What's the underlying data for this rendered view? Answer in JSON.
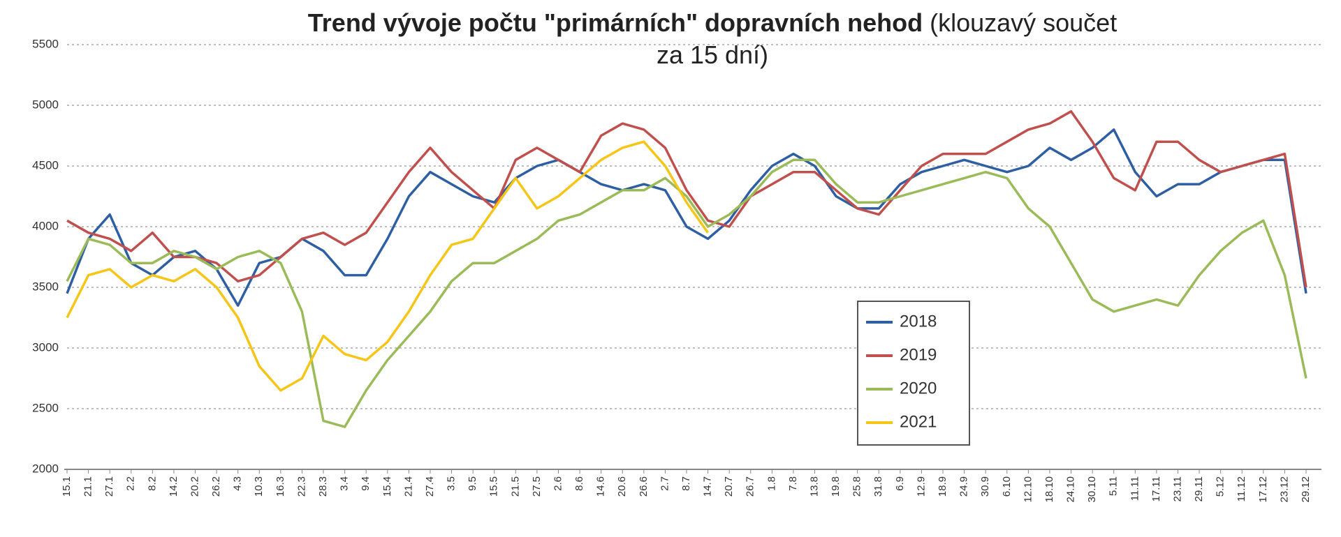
{
  "chart_data": {
    "type": "line",
    "title": "Trend vývoje počtu \"primárních\" dopravních nehod",
    "title_note": "(klouzavý součet za 15 dní)",
    "categories": [
      "15.1",
      "21.1",
      "27.1",
      "2.2",
      "8.2",
      "14.2",
      "20.2",
      "26.2",
      "4.3",
      "10.3",
      "16.3",
      "22.3",
      "28.3",
      "3.4",
      "9.4",
      "15.4",
      "21.4",
      "27.4",
      "3.5",
      "9.5",
      "15.5",
      "21.5",
      "27.5",
      "2.6",
      "8.6",
      "14.6",
      "20.6",
      "26.6",
      "2.7",
      "8.7",
      "14.7",
      "20.7",
      "26.7",
      "1.8",
      "7.8",
      "13.8",
      "19.8",
      "25.8",
      "31.8",
      "6.9",
      "12.9",
      "18.9",
      "24.9",
      "30.9",
      "6.10",
      "12.10",
      "18.10",
      "24.10",
      "30.10",
      "5.11",
      "11.11",
      "17.11",
      "23.11",
      "29.11",
      "5.12",
      "11.12",
      "17.12",
      "23.12",
      "29.12"
    ],
    "series": [
      {
        "name": "2018",
        "color": "#2e5fa3",
        "values": [
          3450,
          3900,
          4100,
          3700,
          3600,
          3750,
          3800,
          3650,
          3350,
          3700,
          3750,
          3900,
          3800,
          3600,
          3600,
          3900,
          4250,
          4450,
          4350,
          4250,
          4200,
          4400,
          4500,
          4550,
          4450,
          4350,
          4300,
          4350,
          4300,
          4000,
          3900,
          4050,
          4300,
          4500,
          4600,
          4500,
          4250,
          4150,
          4150,
          4350,
          4450,
          4500,
          4550,
          4500,
          4450,
          4500,
          4650,
          4550,
          4650,
          4800,
          4450,
          4250,
          4350,
          4350,
          4450,
          4500,
          4550,
          4550,
          3450
        ]
      },
      {
        "name": "2019",
        "color": "#c0504d",
        "values": [
          4050,
          3950,
          3900,
          3800,
          3950,
          3750,
          3750,
          3700,
          3550,
          3600,
          3750,
          3900,
          3950,
          3850,
          3950,
          4200,
          4450,
          4650,
          4450,
          4300,
          4150,
          4550,
          4650,
          4550,
          4450,
          4750,
          4850,
          4800,
          4650,
          4300,
          4050,
          4000,
          4250,
          4350,
          4450,
          4450,
          4300,
          4150,
          4100,
          4300,
          4500,
          4600,
          4600,
          4600,
          4700,
          4800,
          4850,
          4950,
          4700,
          4400,
          4300,
          4700,
          4700,
          4550,
          4450,
          4500,
          4550,
          4600,
          3500
        ]
      },
      {
        "name": "2020",
        "color": "#9bbb59",
        "values": [
          3550,
          3900,
          3850,
          3700,
          3700,
          3800,
          3750,
          3650,
          3750,
          3800,
          3700,
          3300,
          2400,
          2350,
          2650,
          2900,
          3100,
          3300,
          3550,
          3700,
          3700,
          3800,
          3900,
          4050,
          4100,
          4200,
          4300,
          4300,
          4400,
          4250,
          4000,
          4100,
          4250,
          4450,
          4550,
          4550,
          4350,
          4200,
          4200,
          4250,
          4300,
          4350,
          4400,
          4450,
          4400,
          4150,
          4000,
          3700,
          3400,
          3300,
          3350,
          3400,
          3350,
          3600,
          3800,
          3950,
          4050,
          3600,
          2750
        ]
      },
      {
        "name": "2021",
        "color": "#f5c518",
        "values": [
          3250,
          3600,
          3650,
          3500,
          3600,
          3550,
          3650,
          3500,
          3250,
          2850,
          2650,
          2750,
          3100,
          2950,
          2900,
          3050,
          3300,
          3600,
          3850,
          3900,
          4150,
          4400,
          4150,
          4250,
          4400,
          4550,
          4650,
          4700,
          4500,
          4200,
          3950,
          null,
          null,
          null,
          null,
          null,
          null,
          null,
          null,
          null,
          null,
          null,
          null,
          null,
          null,
          null,
          null,
          null,
          null,
          null,
          null,
          null,
          null,
          null,
          null,
          null,
          null,
          null,
          null
        ]
      }
    ],
    "ylim": [
      2000,
      5500
    ],
    "yticks": [
      2000,
      2500,
      3000,
      3500,
      4000,
      4500,
      5000,
      5500
    ],
    "grid": true
  }
}
